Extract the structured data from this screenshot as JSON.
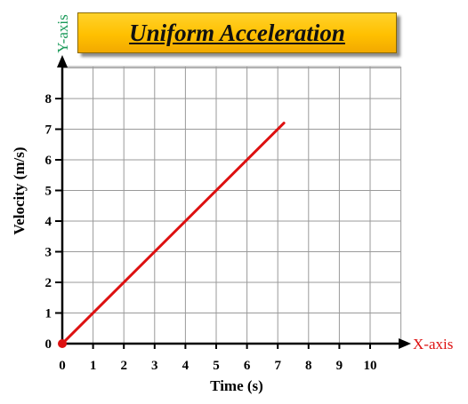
{
  "chart_data": {
    "type": "line",
    "title": "Uniform Acceleration",
    "xlabel": "Time (s)",
    "ylabel": "Velocity (m/s)",
    "x_axis_name": "X-axis",
    "y_axis_name": "Y-axis",
    "x_ticks": [
      "0",
      "1",
      "2",
      "3",
      "4",
      "5",
      "6",
      "7",
      "8",
      "9",
      "10"
    ],
    "y_ticks": [
      "0",
      "1",
      "2",
      "3",
      "4",
      "5",
      "6",
      "7",
      "8"
    ],
    "xlim": [
      0,
      11
    ],
    "ylim": [
      0,
      9
    ],
    "grid": true,
    "series": [
      {
        "color": "#dd1111",
        "x": [
          0,
          7.2
        ],
        "y": [
          0,
          7.2
        ]
      }
    ],
    "colors": {
      "x_axis_name": "#dd1111",
      "y_axis_name": "#1a9a5a",
      "grid": "#9a9a9a",
      "axis": "#000000"
    }
  }
}
